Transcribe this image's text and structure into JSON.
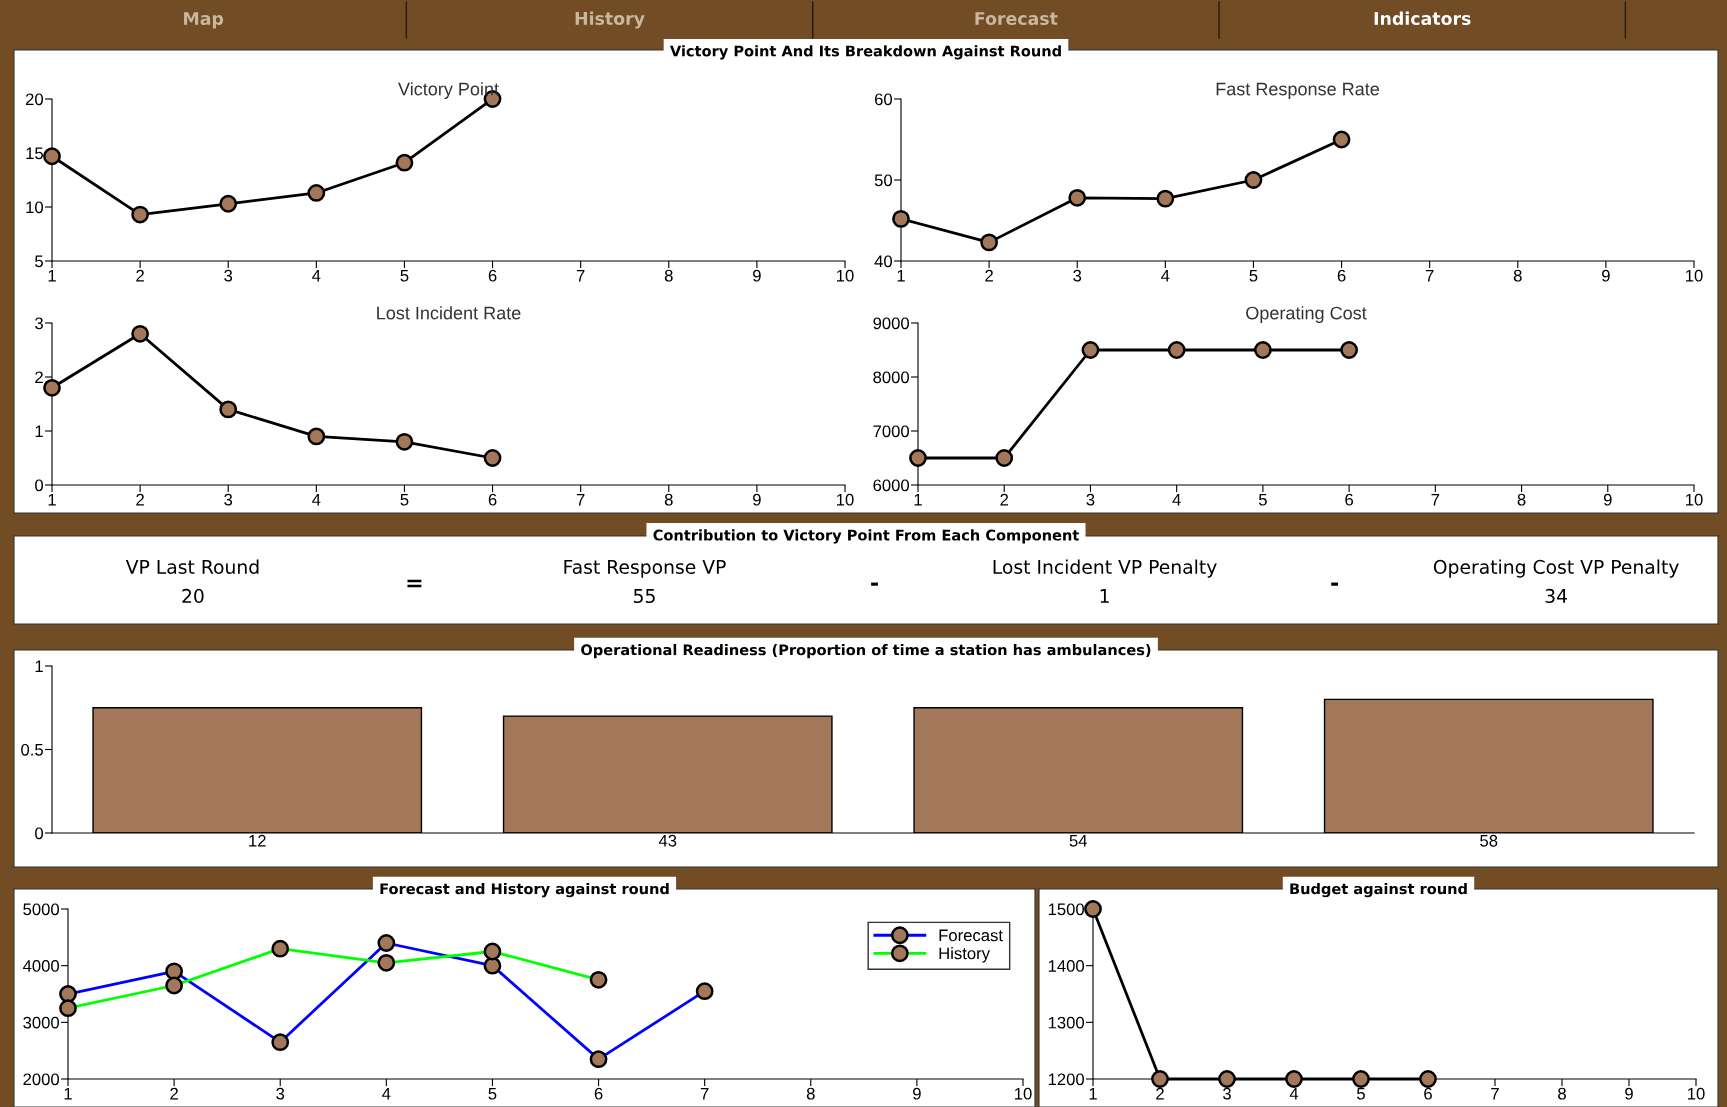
{
  "chart_data": [
    {
      "type": "other",
      "annotations": [
        "Map",
        "History",
        "Forecast",
        "Indicators"
      ]
    },
    {
      "type": "other",
      "title": "Victory Point And Its Breakdown Against Round"
    },
    {
      "type": "line",
      "title": "Victory Point",
      "x": [
        1,
        2,
        3,
        4,
        5,
        6
      ],
      "xlim": [
        1,
        10
      ],
      "xticks": [
        1,
        2,
        3,
        4,
        5,
        6,
        7,
        8,
        9,
        10
      ],
      "ylim": [
        5,
        20
      ],
      "yticks": [
        5,
        10,
        15,
        20
      ],
      "marker": "circle",
      "grid": false,
      "legend": false,
      "series": [
        {
          "color": "#000000",
          "values": [
            14.7,
            9.3,
            10.3,
            11.3,
            14.1,
            20
          ]
        }
      ]
    },
    {
      "type": "line",
      "title": "Fast Response Rate",
      "x": [
        1,
        2,
        3,
        4,
        5,
        6
      ],
      "xlim": [
        1,
        10
      ],
      "xticks": [
        1,
        2,
        3,
        4,
        5,
        6,
        7,
        8,
        9,
        10
      ],
      "ylim": [
        40,
        60
      ],
      "yticks": [
        40,
        50,
        60
      ],
      "marker": "circle",
      "grid": false,
      "legend": false,
      "series": [
        {
          "color": "#000000",
          "values": [
            45.2,
            42.3,
            47.8,
            47.7,
            50,
            55
          ]
        }
      ]
    },
    {
      "type": "line",
      "title": "Lost Incident Rate",
      "x": [
        1,
        2,
        3,
        4,
        5,
        6
      ],
      "xlim": [
        1,
        10
      ],
      "xticks": [
        1,
        2,
        3,
        4,
        5,
        6,
        7,
        8,
        9,
        10
      ],
      "ylim": [
        0,
        3
      ],
      "yticks": [
        0,
        1,
        2,
        3
      ],
      "marker": "circle",
      "grid": false,
      "legend": false,
      "series": [
        {
          "color": "#000000",
          "values": [
            1.8,
            2.8,
            1.4,
            0.9,
            0.8,
            0.5
          ]
        }
      ]
    },
    {
      "type": "line",
      "title": "Operating Cost",
      "x": [
        1,
        2,
        3,
        4,
        5,
        6
      ],
      "xlim": [
        1,
        10
      ],
      "xticks": [
        1,
        2,
        3,
        4,
        5,
        6,
        7,
        8,
        9,
        10
      ],
      "ylim": [
        6000,
        9000
      ],
      "yticks": [
        6000,
        7000,
        8000,
        9000
      ],
      "marker": "circle",
      "grid": false,
      "legend": false,
      "series": [
        {
          "color": "#000000",
          "values": [
            6500,
            6500,
            8500,
            8500,
            8500,
            8500
          ]
        }
      ]
    },
    {
      "type": "other",
      "title": "Contribution to Victory Point From Each Component",
      "annotations": [
        "VP Last Round",
        "20",
        "=",
        "Fast Response VP",
        "55",
        "-",
        "Lost Incident VP Penalty",
        "1",
        "-",
        "Operating Cost VP Penalty",
        "34"
      ]
    },
    {
      "type": "bar",
      "title": "Operational Readiness (Proportion of time a station has ambulances)",
      "categories": [
        "12",
        "43",
        "54",
        "58"
      ],
      "values": [
        0.75,
        0.7,
        0.75,
        0.8
      ],
      "color": "#a3785a",
      "ylim": [
        0,
        1
      ],
      "yticks": [
        0,
        0.5,
        1
      ],
      "grid": false
    },
    {
      "type": "line",
      "title": "Forecast and History against round",
      "xlim": [
        1,
        10
      ],
      "xticks": [
        1,
        2,
        3,
        4,
        5,
        6,
        7,
        8,
        9,
        10
      ],
      "ylim": [
        2000,
        5000
      ],
      "yticks": [
        2000,
        3000,
        4000,
        5000
      ],
      "marker": "circle",
      "grid": false,
      "legend": "top right",
      "series": [
        {
          "name": "Forecast",
          "color": "#0000ff",
          "x": [
            1,
            2,
            3,
            4,
            5,
            6,
            7
          ],
          "values": [
            3500,
            3900,
            2650,
            4400,
            4000,
            2350,
            3550
          ]
        },
        {
          "name": "History",
          "color": "#00ff00",
          "x": [
            1,
            2,
            3,
            4,
            5,
            6
          ],
          "values": [
            3250,
            3650,
            4300,
            4050,
            4250,
            3750
          ]
        }
      ]
    },
    {
      "type": "line",
      "title": "Budget against round",
      "x": [
        1,
        2,
        3,
        4,
        5,
        6
      ],
      "xlim": [
        1,
        10
      ],
      "xticks": [
        1,
        2,
        3,
        4,
        5,
        6,
        7,
        8,
        9,
        10
      ],
      "ylim": [
        1200,
        1500
      ],
      "yticks": [
        1200,
        1300,
        1400,
        1500
      ],
      "marker": "circle",
      "grid": false,
      "legend": false,
      "series": [
        {
          "color": "#000000",
          "values": [
            1500,
            1200,
            1200,
            1200,
            1200,
            1200
          ]
        }
      ]
    }
  ]
}
